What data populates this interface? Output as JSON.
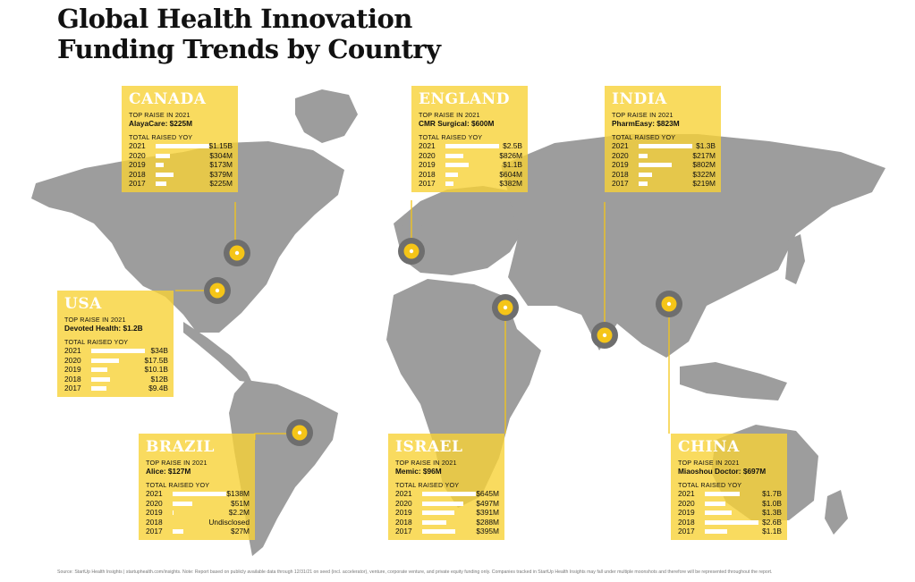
{
  "title_lines": [
    "Global Health Innovation",
    "Funding Trends by Country"
  ],
  "source": "Source: StartUp Health Insights | startuphealth.com/insights. Note: Report based on publicly available data through 12/31/21 on seed (incl. accelerator), venture, corporate venture, and private equity funding only. Companies tracked in StartUp Health Insights may fall under multiple moonshots and therefore will be represented throughout the report.",
  "colors": {
    "accent": "#F8D237",
    "marker_ring": "#6E6E6E",
    "marker_fill": "#F5C518",
    "map": "#9D9D9D",
    "line": "#F5C518"
  },
  "chart_data": {
    "type": "bar",
    "top_raise_label": "TOP RAISE IN 2021",
    "total_label": "TOTAL RAISED YOY",
    "countries": [
      {
        "country": "CANADA",
        "top_raise": "AlayaCare: $225M",
        "rows": [
          {
            "year": "2021",
            "label": "$1.15B",
            "value": 1150
          },
          {
            "year": "2020",
            "label": "$304M",
            "value": 304
          },
          {
            "year": "2019",
            "label": "$173M",
            "value": 173
          },
          {
            "year": "2018",
            "label": "$379M",
            "value": 379
          },
          {
            "year": "2017",
            "label": "$225M",
            "value": 225
          }
        ]
      },
      {
        "country": "ENGLAND",
        "top_raise": "CMR Surgical: $600M",
        "rows": [
          {
            "year": "2021",
            "label": "$2.5B",
            "value": 2500
          },
          {
            "year": "2020",
            "label": "$826M",
            "value": 826
          },
          {
            "year": "2019",
            "label": "$1.1B",
            "value": 1100
          },
          {
            "year": "2018",
            "label": "$604M",
            "value": 604
          },
          {
            "year": "2017",
            "label": "$382M",
            "value": 382
          }
        ]
      },
      {
        "country": "INDIA",
        "top_raise": "PharmEasy: $823M",
        "rows": [
          {
            "year": "2021",
            "label": "$1.3B",
            "value": 1300
          },
          {
            "year": "2020",
            "label": "$217M",
            "value": 217
          },
          {
            "year": "2019",
            "label": "$802M",
            "value": 802
          },
          {
            "year": "2018",
            "label": "$322M",
            "value": 322
          },
          {
            "year": "2017",
            "label": "$219M",
            "value": 219
          }
        ]
      },
      {
        "country": "USA",
        "top_raise": "Devoted Health: $1.2B",
        "rows": [
          {
            "year": "2021",
            "label": "$34B",
            "value": 34000
          },
          {
            "year": "2020",
            "label": "$17.5B",
            "value": 17500
          },
          {
            "year": "2019",
            "label": "$10.1B",
            "value": 10100
          },
          {
            "year": "2018",
            "label": "$12B",
            "value": 12000
          },
          {
            "year": "2017",
            "label": "$9.4B",
            "value": 9400
          }
        ]
      },
      {
        "country": "BRAZIL",
        "top_raise": "Alice: $127M",
        "rows": [
          {
            "year": "2021",
            "label": "$138M",
            "value": 138
          },
          {
            "year": "2020",
            "label": "$51M",
            "value": 51
          },
          {
            "year": "2019",
            "label": "$2.2M",
            "value": 2.2
          },
          {
            "year": "2018",
            "label": "Undisclosed",
            "value": 0
          },
          {
            "year": "2017",
            "label": "$27M",
            "value": 27
          }
        ]
      },
      {
        "country": "ISRAEL",
        "top_raise": "Memic: $96M",
        "rows": [
          {
            "year": "2021",
            "label": "$645M",
            "value": 645
          },
          {
            "year": "2020",
            "label": "$497M",
            "value": 497
          },
          {
            "year": "2019",
            "label": "$391M",
            "value": 391
          },
          {
            "year": "2018",
            "label": "$288M",
            "value": 288
          },
          {
            "year": "2017",
            "label": "$395M",
            "value": 395
          }
        ]
      },
      {
        "country": "CHINA",
        "top_raise": "Miaoshou Doctor: $697M",
        "rows": [
          {
            "year": "2021",
            "label": "$1.7B",
            "value": 1700
          },
          {
            "year": "2020",
            "label": "$1.0B",
            "value": 1000
          },
          {
            "year": "2019",
            "label": "$1.3B",
            "value": 1300
          },
          {
            "year": "2018",
            "label": "$2.6B",
            "value": 2600
          },
          {
            "year": "2017",
            "label": "$1.1B",
            "value": 1100
          }
        ]
      }
    ]
  }
}
